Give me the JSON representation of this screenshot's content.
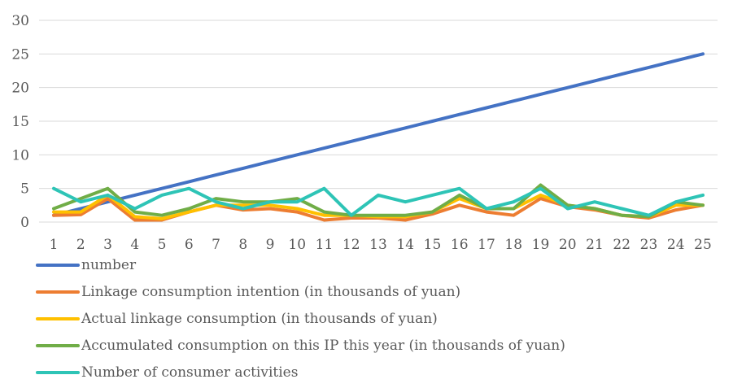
{
  "chart_data": {
    "type": "line",
    "title": "",
    "xlabel": "",
    "ylabel": "",
    "ylim": [
      0,
      30
    ],
    "yticks": [
      0,
      5,
      10,
      15,
      20,
      25,
      30
    ],
    "grid": true,
    "legend_position": "bottom",
    "x": [
      "1",
      "2",
      "3",
      "4",
      "5",
      "6",
      "7",
      "8",
      "9",
      "10",
      "11",
      "12",
      "13",
      "14",
      "15",
      "16",
      "17",
      "18",
      "19",
      "20",
      "21",
      "22",
      "23",
      "24",
      "25"
    ],
    "series": [
      {
        "name": "number",
        "color": "#4472c4",
        "values": [
          1,
          2,
          3,
          4,
          5,
          6,
          7,
          8,
          9,
          10,
          11,
          12,
          13,
          14,
          15,
          16,
          17,
          18,
          19,
          20,
          21,
          22,
          23,
          24,
          25
        ]
      },
      {
        "name": "Linkage consumption intention (in thousands of yuan)",
        "color": "#ed7d31",
        "values": [
          1,
          1.1,
          3.5,
          0.3,
          0.3,
          1.5,
          2.5,
          1.8,
          2,
          1.5,
          0.3,
          0.6,
          0.6,
          0.3,
          1.2,
          2.5,
          1.5,
          1,
          3.5,
          2.3,
          1.8,
          1,
          0.6,
          1.8,
          2.5
        ]
      },
      {
        "name": "Actual linkage consumption (in thousands of yuan)",
        "color": "#ffc000",
        "values": [
          1.5,
          1.5,
          4,
          0.8,
          0.5,
          1.5,
          2.5,
          2.5,
          2.5,
          2,
          1,
          1,
          0.8,
          0.8,
          1.5,
          3.5,
          2,
          2,
          4,
          2.5,
          2,
          1,
          0.8,
          2.5,
          2.5
        ]
      },
      {
        "name": "Accumulated consumption on this IP this year (in thousands of yuan)",
        "color": "#70ad47",
        "values": [
          2,
          3.5,
          5,
          1.5,
          1,
          2,
          3.5,
          3,
          3,
          3.5,
          1.5,
          1,
          1,
          1,
          1.5,
          4,
          2,
          2,
          5.5,
          2.5,
          2,
          1,
          0.8,
          3,
          2.5
        ]
      },
      {
        "name": "Number of consumer activities",
        "color": "#2ec4b6",
        "values": [
          5,
          3,
          4,
          2,
          4,
          5,
          3,
          2,
          3,
          3,
          5,
          1,
          4,
          3,
          4,
          5,
          2,
          3,
          5,
          2,
          3,
          2,
          1,
          3,
          4
        ]
      }
    ]
  }
}
